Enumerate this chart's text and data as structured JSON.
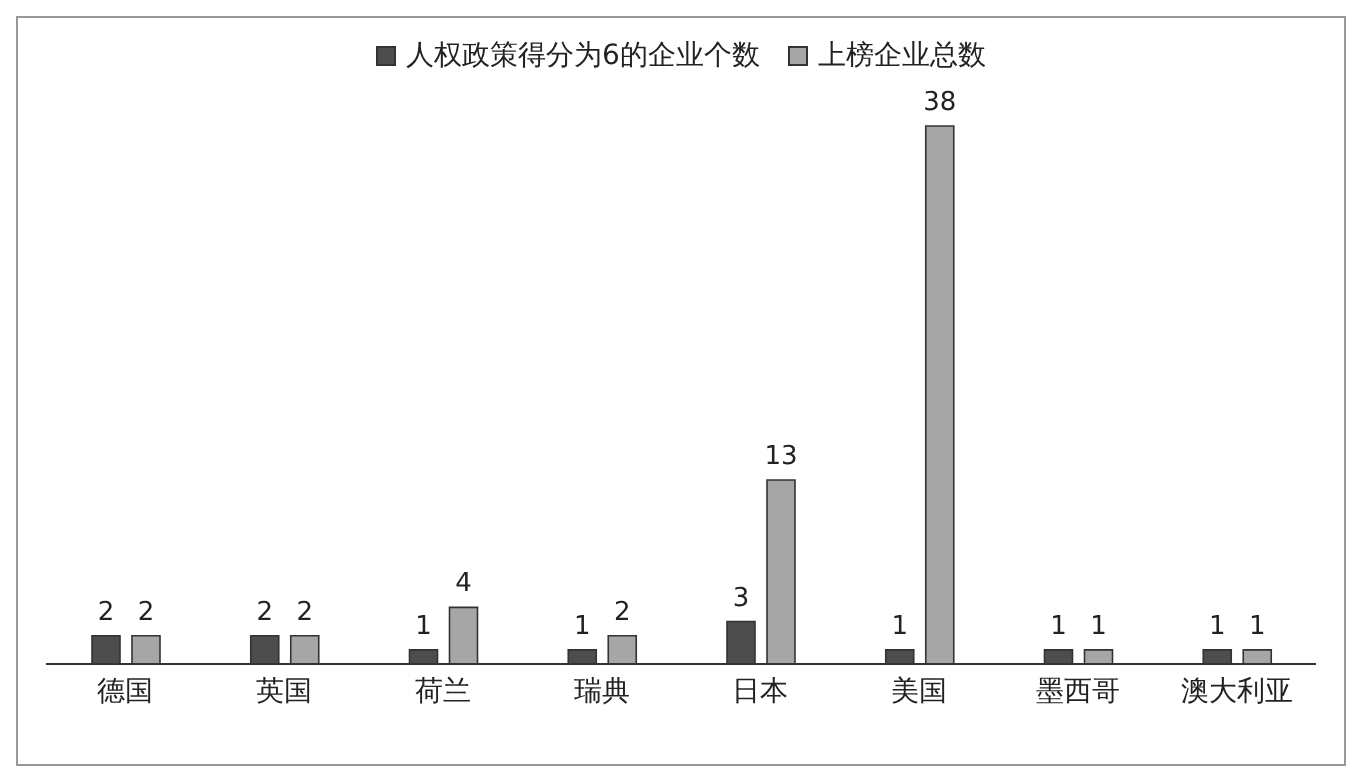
{
  "chart_data": {
    "type": "bar",
    "categories": [
      "德国",
      "英国",
      "荷兰",
      "瑞典",
      "日本",
      "美国",
      "墨西哥",
      "澳大利亚"
    ],
    "series": [
      {
        "name": "人权政策得分为6的企业个数",
        "color": "#4d4d4d",
        "values": [
          2,
          2,
          1,
          1,
          3,
          1,
          1,
          1
        ]
      },
      {
        "name": "上榜企业总数",
        "color": "#a6a6a6",
        "values": [
          2,
          2,
          4,
          2,
          13,
          38,
          1,
          1
        ]
      }
    ],
    "data_labels": true,
    "legend": "top",
    "tick_labels": "x"
  }
}
